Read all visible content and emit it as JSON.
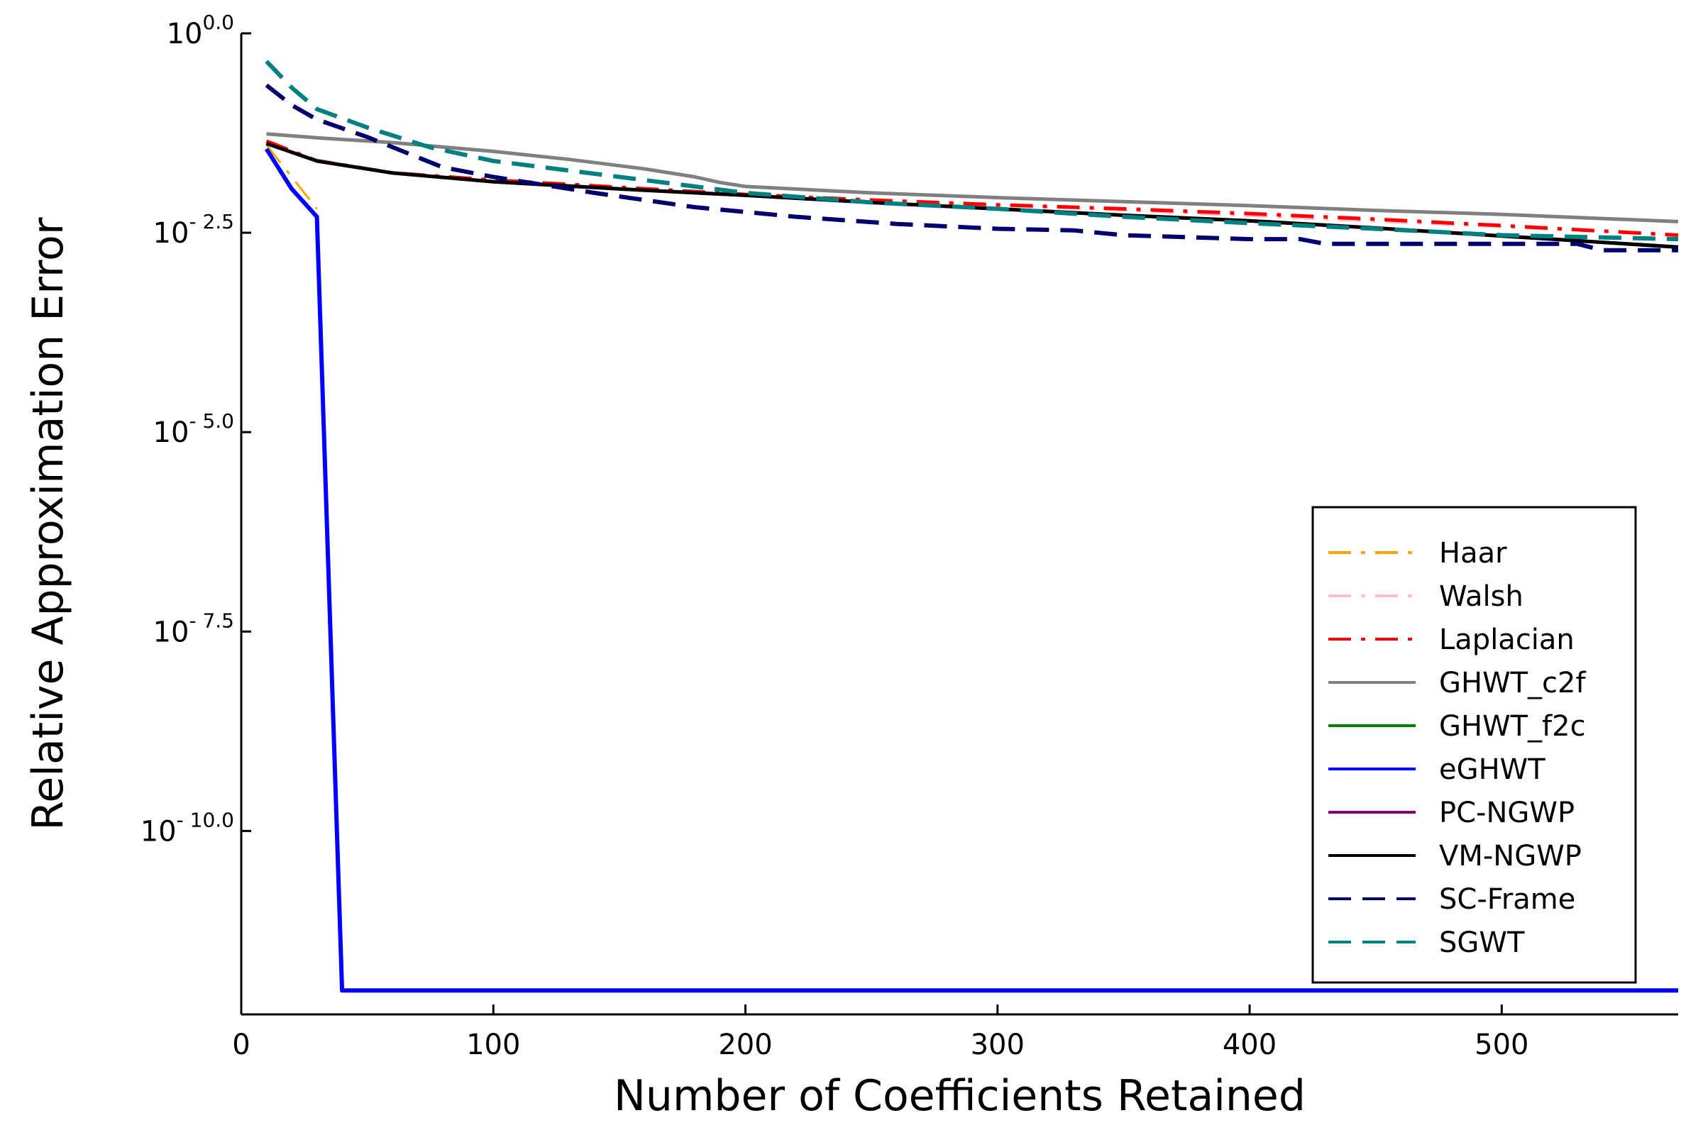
{
  "chart_data": {
    "type": "line",
    "title": "",
    "xlabel": "Number of Coefficients Retained",
    "ylabel": "Relative Approximation Error",
    "y_scale": "log10",
    "xlim": [
      0,
      570
    ],
    "ylim_log10": [
      -12.3,
      0.0
    ],
    "x_ticks": [
      0,
      100,
      200,
      300,
      400,
      500
    ],
    "y_ticks": [
      {
        "base": "10",
        "exp": "0.0",
        "value_log10": 0.0
      },
      {
        "base": "10",
        "exp": "- 2.5",
        "value_log10": -2.5
      },
      {
        "base": "10",
        "exp": "- 5.0",
        "value_log10": -5.0
      },
      {
        "base": "10",
        "exp": "- 7.5",
        "value_log10": -7.5
      },
      {
        "base": "10",
        "exp": "- 10.0",
        "value_log10": -10.0
      }
    ],
    "grid": false,
    "legend_position": "bottom-right",
    "series": [
      {
        "name": "Haar",
        "color": "#FFA500",
        "dash": "dashdot",
        "width": 3,
        "x": [
          10,
          20,
          30
        ],
        "y_log10": [
          -1.4,
          -1.8,
          -2.2
        ]
      },
      {
        "name": "Walsh",
        "color": "#FFC0CB",
        "dash": "dashdot",
        "width": 3,
        "x": [
          10,
          30,
          60,
          100,
          150,
          200,
          250,
          300,
          350,
          400,
          450,
          500,
          570
        ],
        "y_log10": [
          -1.37,
          -1.58,
          -1.74,
          -1.83,
          -1.93,
          -2.02,
          -2.09,
          -2.16,
          -2.22,
          -2.29,
          -2.36,
          -2.43,
          -2.53
        ]
      },
      {
        "name": "Laplacian",
        "color": "#FF0000",
        "dash": "dashdot",
        "width": 5,
        "x": [
          10,
          30,
          60,
          100,
          150,
          200,
          250,
          300,
          350,
          400,
          450,
          500,
          570
        ],
        "y_log10": [
          -1.35,
          -1.6,
          -1.75,
          -1.84,
          -1.93,
          -2.02,
          -2.09,
          -2.15,
          -2.2,
          -2.26,
          -2.33,
          -2.41,
          -2.53
        ]
      },
      {
        "name": "GHWT_c2f",
        "color": "#808080",
        "dash": "solid",
        "width": 5,
        "x": [
          10,
          30,
          60,
          100,
          130,
          160,
          180,
          190,
          200,
          250,
          300,
          350,
          400,
          450,
          500,
          570
        ],
        "y_log10": [
          -1.26,
          -1.31,
          -1.37,
          -1.48,
          -1.58,
          -1.7,
          -1.8,
          -1.87,
          -1.92,
          -2.0,
          -2.06,
          -2.11,
          -2.16,
          -2.22,
          -2.27,
          -2.36
        ]
      },
      {
        "name": "GHWT_f2c",
        "color": "#008000",
        "dash": "solid",
        "width": 3,
        "x": [
          10,
          30,
          60,
          100,
          150,
          200,
          250,
          300,
          350,
          400,
          450,
          500,
          570
        ],
        "y_log10": [
          -1.38,
          -1.6,
          -1.75,
          -1.86,
          -1.95,
          -2.03,
          -2.12,
          -2.2,
          -2.28,
          -2.35,
          -2.44,
          -2.54,
          -2.68
        ]
      },
      {
        "name": "eGHWT",
        "color": "#0000FF",
        "dash": "solid",
        "width": 6,
        "x": [
          10,
          20,
          30,
          40,
          50,
          100,
          200,
          300,
          400,
          500,
          570
        ],
        "y_log10": [
          -1.45,
          -1.95,
          -2.3,
          -12.0,
          -12.0,
          -12.0,
          -12.0,
          -12.0,
          -12.0,
          -12.0,
          -12.0
        ]
      },
      {
        "name": "PC-NGWP",
        "color": "#800080",
        "dash": "solid",
        "width": 3,
        "x": [
          10,
          30,
          60,
          100,
          150,
          200,
          250,
          300,
          350,
          400,
          450,
          500,
          570
        ],
        "y_log10": [
          -1.39,
          -1.61,
          -1.76,
          -1.87,
          -1.96,
          -2.04,
          -2.13,
          -2.21,
          -2.29,
          -2.36,
          -2.45,
          -2.55,
          -2.69
        ]
      },
      {
        "name": "VM-NGWP",
        "color": "#000000",
        "dash": "solid",
        "width": 5,
        "x": [
          10,
          30,
          60,
          100,
          150,
          200,
          250,
          300,
          350,
          400,
          450,
          500,
          570
        ],
        "y_log10": [
          -1.38,
          -1.6,
          -1.75,
          -1.86,
          -1.95,
          -2.03,
          -2.12,
          -2.2,
          -2.28,
          -2.35,
          -2.44,
          -2.54,
          -2.68
        ]
      },
      {
        "name": "SC-Frame",
        "color": "#00006E",
        "dash": "dashed",
        "width": 6,
        "x": [
          10,
          20,
          30,
          50,
          80,
          100,
          140,
          180,
          220,
          260,
          300,
          330,
          350,
          400,
          420,
          430,
          480,
          530,
          540,
          570
        ],
        "y_log10": [
          -0.65,
          -0.9,
          -1.08,
          -1.3,
          -1.68,
          -1.8,
          -2.0,
          -2.18,
          -2.3,
          -2.39,
          -2.45,
          -2.47,
          -2.53,
          -2.58,
          -2.58,
          -2.64,
          -2.64,
          -2.64,
          -2.72,
          -2.72
        ]
      },
      {
        "name": "SGWT",
        "color": "#008080",
        "dash": "dashed",
        "width": 6,
        "x": [
          10,
          20,
          30,
          50,
          75,
          100,
          150,
          200,
          250,
          300,
          350,
          400,
          450,
          500,
          570
        ],
        "y_log10": [
          -0.35,
          -0.68,
          -0.95,
          -1.18,
          -1.43,
          -1.6,
          -1.8,
          -2.0,
          -2.12,
          -2.2,
          -2.3,
          -2.38,
          -2.45,
          -2.53,
          -2.58
        ]
      }
    ]
  }
}
